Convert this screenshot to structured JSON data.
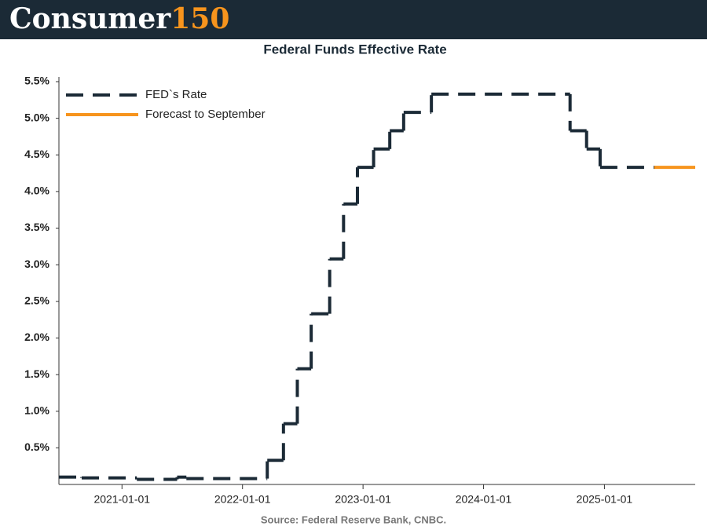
{
  "brand": {
    "name": "Consumer",
    "number": "150"
  },
  "chart_data": {
    "type": "step",
    "title": "Federal Funds Effective Rate",
    "source": "Source: Federal Reserve Bank, CNBC.",
    "legend": "top-left",
    "xlim": [
      "2020-06-24",
      "2025-10-03"
    ],
    "xticks": [
      "2021-01-01",
      "2022-01-01",
      "2023-01-01",
      "2024-01-01",
      "2025-01-01"
    ],
    "ylim": [
      0,
      5.5
    ],
    "yticks": [
      {
        "value": 0.5,
        "label": "0.5%"
      },
      {
        "value": 1.0,
        "label": "1.0%"
      },
      {
        "value": 1.5,
        "label": "1.5%"
      },
      {
        "value": 2.0,
        "label": "2.0%"
      },
      {
        "value": 2.5,
        "label": "2.5%"
      },
      {
        "value": 3.0,
        "label": "3.0%"
      },
      {
        "value": 3.5,
        "label": "3.5%"
      },
      {
        "value": 4.0,
        "label": "4.0%"
      },
      {
        "value": 4.5,
        "label": "4.5%"
      },
      {
        "value": 5.0,
        "label": "5.0%"
      },
      {
        "value": 5.5,
        "label": "5.5%"
      }
    ],
    "series": [
      {
        "name": "FED`s Rate",
        "color": "#1b2a36",
        "dashed": true,
        "x": [
          "2020-06-24",
          "2020-09-01",
          "2021-02-15",
          "2021-06-17",
          "2021-07-15",
          "2022-03-17",
          "2022-05-05",
          "2022-06-16",
          "2022-07-28",
          "2022-09-22",
          "2022-11-03",
          "2022-12-15",
          "2023-02-02",
          "2023-03-23",
          "2023-05-04",
          "2023-07-27",
          "2024-09-19",
          "2024-11-08",
          "2024-12-19",
          "2025-06-01"
        ],
        "values": [
          0.1,
          0.09,
          0.07,
          0.1,
          0.08,
          0.33,
          0.83,
          1.58,
          2.33,
          3.08,
          3.83,
          4.33,
          4.58,
          4.83,
          5.08,
          5.33,
          4.83,
          4.58,
          4.33,
          4.33
        ]
      },
      {
        "name": "Forecast to September",
        "color": "#f7941d",
        "dashed": false,
        "x": [
          "2025-06-01",
          "2025-10-03"
        ],
        "values": [
          4.33,
          4.33
        ]
      }
    ]
  }
}
